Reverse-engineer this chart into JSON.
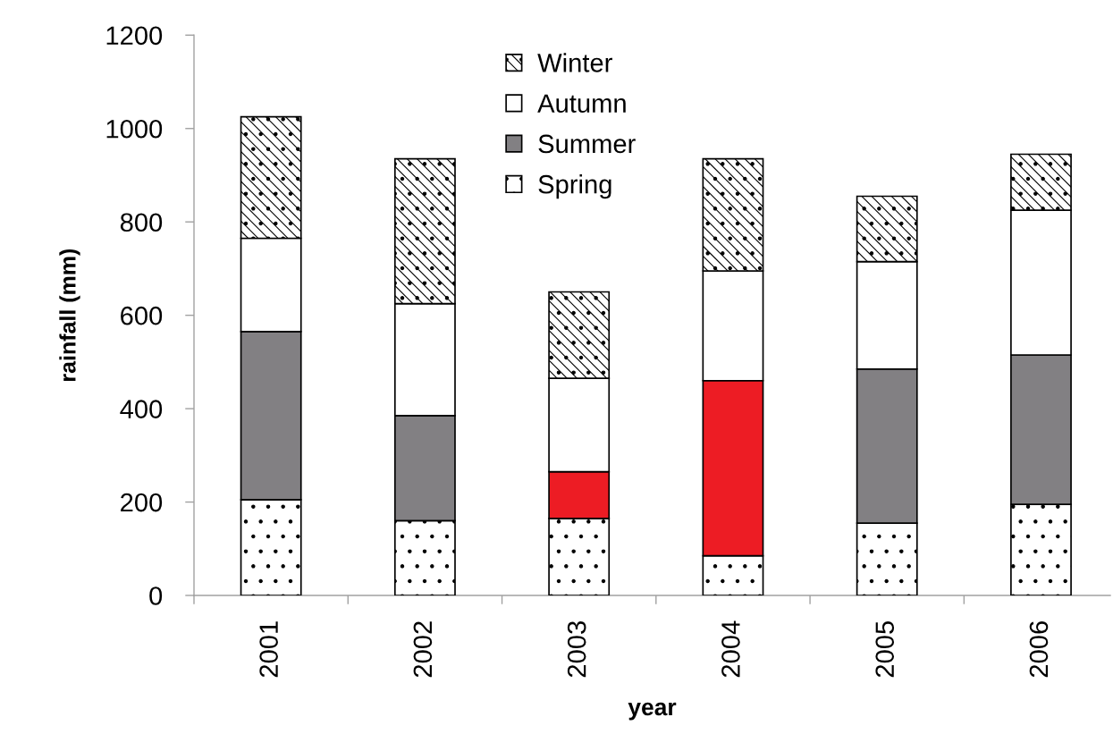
{
  "chart_data": {
    "type": "bar",
    "stacked": true,
    "xlabel": "year",
    "ylabel": "rainfall (mm)",
    "categories": [
      "2001",
      "2002",
      "2003",
      "2004",
      "2005",
      "2006"
    ],
    "series": [
      {
        "name": "Spring",
        "color": "#000000",
        "values": [
          205,
          160,
          165,
          85,
          155,
          195
        ]
      },
      {
        "name": "Summer",
        "color": "#828083",
        "colors": [
          "#828083",
          "#828083",
          "#ed1c24",
          "#ed1c24",
          "#828083",
          "#828083"
        ],
        "values": [
          360,
          225,
          100,
          375,
          330,
          320
        ]
      },
      {
        "name": "Autumn",
        "color": "#ffffff",
        "values": [
          200,
          240,
          200,
          235,
          230,
          310
        ]
      },
      {
        "name": "Winter",
        "color": "#000000",
        "values": [
          260,
          310,
          185,
          240,
          140,
          120
        ]
      }
    ],
    "ylim": [
      0,
      1200
    ],
    "yticks": [
      0,
      200,
      400,
      600,
      800,
      1000,
      1200
    ],
    "grid": false,
    "legend": "top"
  }
}
